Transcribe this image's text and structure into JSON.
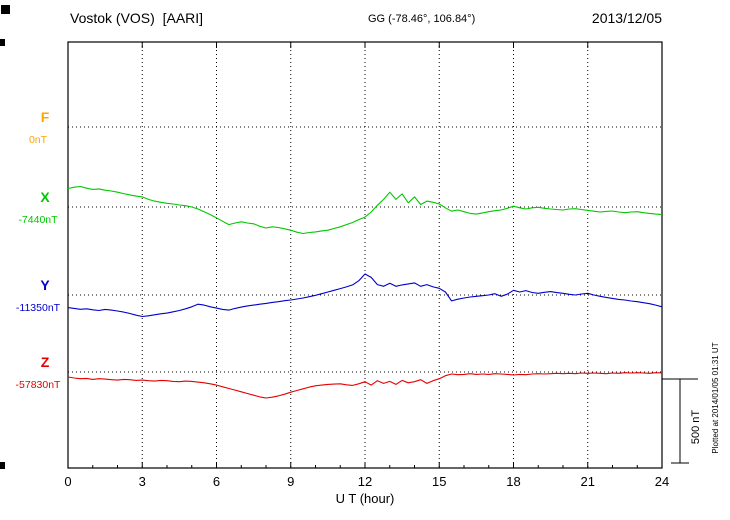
{
  "header": {
    "station_title": "Vostok (VOS)  [AARI]",
    "coords": "GG (-78.46°, 106.84°)",
    "date": "2013/12/05"
  },
  "xaxis": {
    "label": "U T (hour)",
    "ticks": [
      "0",
      "3",
      "6",
      "9",
      "12",
      "15",
      "18",
      "21",
      "24"
    ]
  },
  "scale_bar": {
    "label": "500 nT",
    "nT": 500
  },
  "footer_note": "Plotted at 2014/01/05 01:31 UT",
  "chart_data": {
    "type": "line",
    "title": "Vostok (VOS) [AARI] magnetogram 2013/12/05",
    "xlabel": "U T (hour)",
    "xlim": [
      0,
      24
    ],
    "x_step_hours": 0.25,
    "scale_nT_per_division": 500,
    "grid": "dotted vertical lines every 3 hours; dotted horizontal line at each component baseline",
    "legend_position": "left-margin component labels",
    "series": [
      {
        "name": "F",
        "baseline_nT": 0,
        "baseline_label": "0nT",
        "color": "#FFA500",
        "values_offset_nT": []
      },
      {
        "name": "X",
        "baseline_nT": -7440,
        "baseline_label": "-7440nT",
        "color": "#00C800",
        "values_offset_nT": [
          110,
          118,
          122,
          112,
          105,
          108,
          100,
          95,
          88,
          80,
          72,
          65,
          60,
          45,
          35,
          28,
          22,
          18,
          12,
          8,
          0,
          -12,
          -28,
          -45,
          -65,
          -85,
          -105,
          -95,
          -88,
          -95,
          -100,
          -115,
          -125,
          -118,
          -122,
          -130,
          -138,
          -150,
          -158,
          -152,
          -148,
          -142,
          -138,
          -128,
          -118,
          -105,
          -92,
          -75,
          -60,
          -30,
          10,
          45,
          88,
          45,
          78,
          25,
          60,
          15,
          35,
          28,
          18,
          -5,
          -25,
          -18,
          -28,
          -38,
          -42,
          -35,
          -28,
          -22,
          -18,
          -8,
          5,
          -5,
          -12,
          -5,
          -2,
          -8,
          -12,
          -15,
          -18,
          -12,
          -10,
          -15,
          -20,
          -25,
          -30,
          -26,
          -24,
          -30,
          -34,
          -30,
          -28,
          -34,
          -38,
          -42,
          -45
        ]
      },
      {
        "name": "Y",
        "baseline_nT": -11350,
        "baseline_label": "-11350nT",
        "color": "#0000CD",
        "values_offset_nT": [
          -75,
          -80,
          -85,
          -82,
          -88,
          -92,
          -86,
          -90,
          -95,
          -102,
          -110,
          -120,
          -128,
          -124,
          -118,
          -112,
          -108,
          -100,
          -92,
          -82,
          -70,
          -55,
          -60,
          -70,
          -78,
          -86,
          -90,
          -80,
          -72,
          -65,
          -60,
          -55,
          -50,
          -44,
          -40,
          -34,
          -30,
          -24,
          -18,
          -10,
          -2,
          8,
          18,
          28,
          38,
          48,
          60,
          85,
          125,
          105,
          62,
          52,
          70,
          52,
          60,
          66,
          72,
          52,
          62,
          48,
          40,
          18,
          -35,
          -25,
          -18,
          -12,
          -8,
          -4,
          0,
          8,
          -8,
          5,
          28,
          18,
          26,
          15,
          10,
          16,
          20,
          14,
          10,
          4,
          0,
          6,
          10,
          0,
          -8,
          -14,
          -20,
          -26,
          -30,
          -36,
          -40,
          -46,
          -52,
          -60,
          -70
        ]
      },
      {
        "name": "Z",
        "baseline_nT": -57830,
        "baseline_label": "-57830nT",
        "color": "#E60000",
        "values_offset_nT": [
          -30,
          -36,
          -40,
          -38,
          -44,
          -40,
          -42,
          -46,
          -48,
          -44,
          -46,
          -50,
          -48,
          -52,
          -54,
          -50,
          -52,
          -56,
          -58,
          -54,
          -56,
          -60,
          -64,
          -70,
          -78,
          -88,
          -98,
          -108,
          -118,
          -128,
          -138,
          -148,
          -155,
          -150,
          -142,
          -132,
          -120,
          -110,
          -100,
          -90,
          -82,
          -78,
          -74,
          -72,
          -70,
          -76,
          -80,
          -70,
          -58,
          -78,
          -52,
          -68,
          -56,
          -74,
          -50,
          -64,
          -58,
          -46,
          -68,
          -52,
          -40,
          -22,
          -12,
          -16,
          -14,
          -10,
          -14,
          -12,
          -14,
          -10,
          -12,
          -14,
          -18,
          -14,
          -16,
          -12,
          -10,
          -12,
          -10,
          -8,
          -10,
          -8,
          -10,
          -6,
          -8,
          -6,
          -8,
          -10,
          -6,
          -8,
          -4,
          -6,
          -4,
          -6,
          -8,
          -4,
          -6
        ]
      }
    ]
  }
}
